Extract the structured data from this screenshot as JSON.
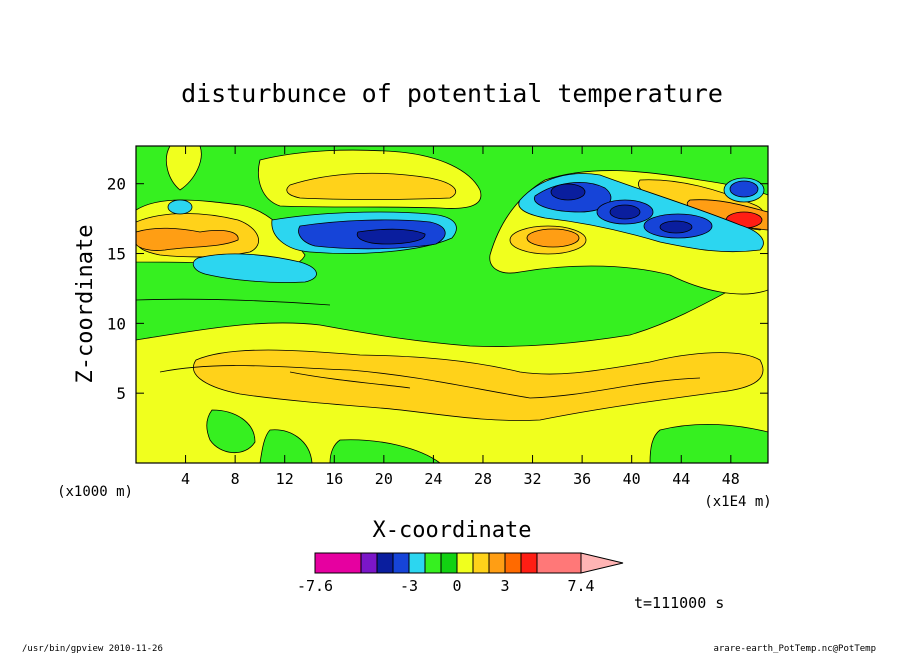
{
  "chart_data": {
    "type": "heatmap",
    "title": "disturbunce of potential temperature",
    "xlabel": "X-coordinate",
    "ylabel": "Z-coordinate",
    "x_unit": "(x1E4 m)",
    "y_unit": "(x1000 m)",
    "x_ticks": [
      4,
      8,
      12,
      16,
      20,
      24,
      28,
      32,
      36,
      40,
      44,
      48
    ],
    "y_ticks": [
      5,
      10,
      15,
      20
    ],
    "xlim": [
      0,
      51
    ],
    "ylim": [
      0,
      22.7
    ],
    "colorbar": {
      "labels": [
        {
          "value": -7.6,
          "text": "-7.6"
        },
        {
          "value": -3,
          "text": "-3"
        },
        {
          "value": 0,
          "text": "0"
        },
        {
          "value": 3,
          "text": "3"
        },
        {
          "value": 7.4,
          "text": "7.4"
        }
      ],
      "levels": [
        -7.6,
        -6.1,
        -4.9,
        -3.9,
        -3,
        -2,
        -1,
        0,
        1,
        2,
        3,
        3.9,
        4.9,
        7.4
      ],
      "colors": [
        "#e600a0",
        "#7b16c8",
        "#0a1e9e",
        "#1644d8",
        "#2cd6f0",
        "#36f020",
        "#12d212",
        "#f0ff1e",
        "#ffd21a",
        "#ff9e14",
        "#ff6a00",
        "#ff1e14",
        "#ff7878",
        "#ffb4b4"
      ]
    },
    "time_label": "t=111000 s"
  },
  "footer": {
    "left": "/usr/bin/gpview  2010-11-26",
    "right": "arare-earth_PotTemp.nc@PotTemp"
  },
  "colors": {
    "green": "#36f020",
    "dark_green": "#12d212",
    "yellow": "#f0ff1e",
    "light_orange": "#ffd21a",
    "orange": "#ff9e14",
    "dark_orange": "#ff6a00",
    "red": "#ff1e14",
    "cyan": "#2cd6f0",
    "blue": "#1644d8",
    "navy": "#0a1e9e"
  }
}
